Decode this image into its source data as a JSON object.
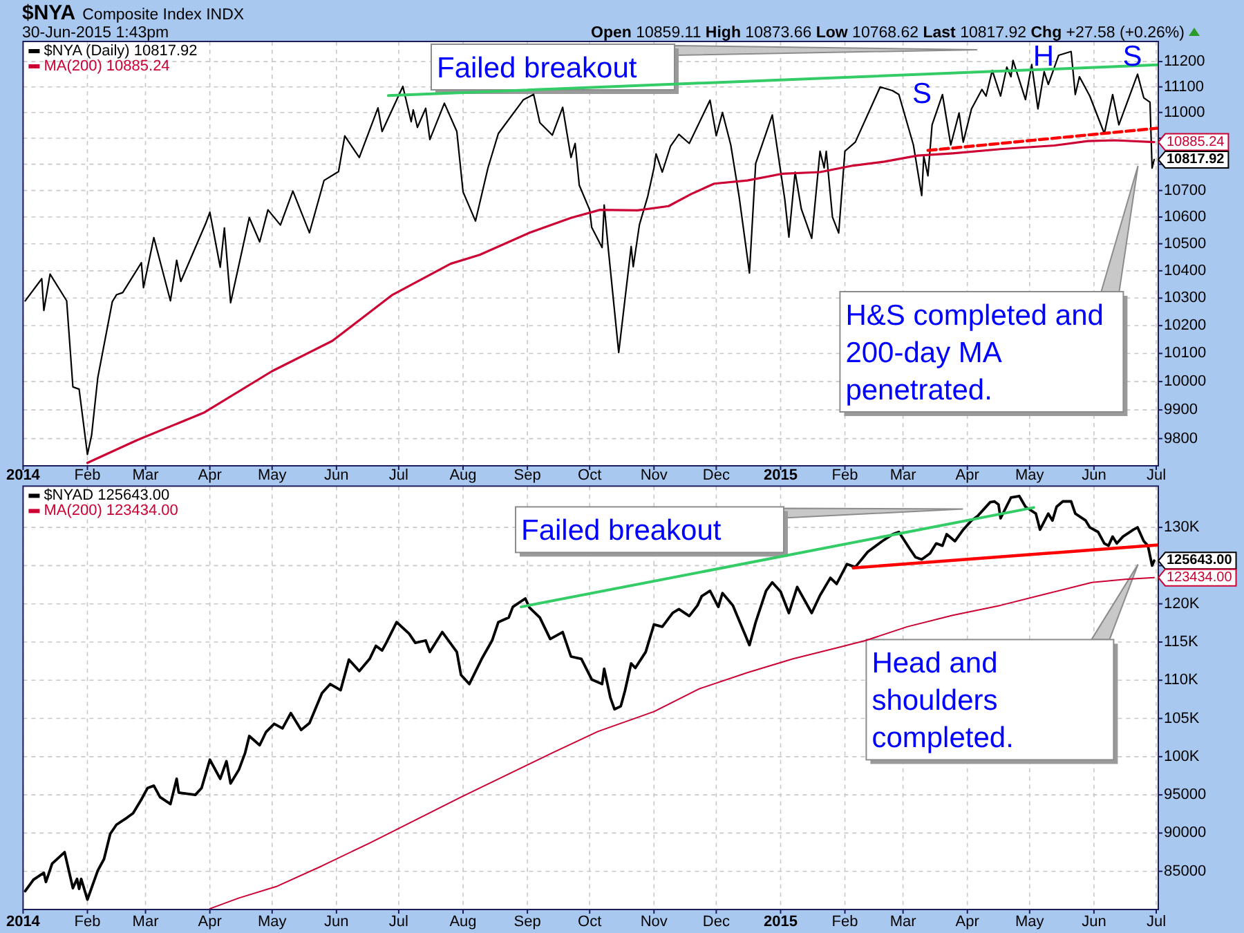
{
  "chart_data": [
    {
      "type": "line",
      "title": "$NYA",
      "subtitle": "Composite Index INDX",
      "xlim": [
        "2014-01-01",
        "2015-07-02"
      ],
      "xticks": [
        {
          "value": "2014-01-01",
          "label": "2014"
        },
        {
          "value": "2014-02-01",
          "label": "Feb"
        },
        {
          "value": "2014-03-01",
          "label": "Mar"
        },
        {
          "value": "2014-04-01",
          "label": "Apr"
        },
        {
          "value": "2014-05-01",
          "label": "May"
        },
        {
          "value": "2014-06-01",
          "label": "Jun"
        },
        {
          "value": "2014-07-01",
          "label": "Jul"
        },
        {
          "value": "2014-08-01",
          "label": "Aug"
        },
        {
          "value": "2014-09-01",
          "label": "Sep"
        },
        {
          "value": "2014-10-01",
          "label": "Oct"
        },
        {
          "value": "2014-11-01",
          "label": "Nov"
        },
        {
          "value": "2014-12-01",
          "label": "Dec"
        },
        {
          "value": "2015-01-01",
          "label": "2015"
        },
        {
          "value": "2015-02-01",
          "label": "Feb"
        },
        {
          "value": "2015-03-01",
          "label": "Mar"
        },
        {
          "value": "2015-04-01",
          "label": "Apr"
        },
        {
          "value": "2015-05-01",
          "label": "May"
        },
        {
          "value": "2015-06-01",
          "label": "Jun"
        },
        {
          "value": "2015-07-01",
          "label": "Jul"
        }
      ],
      "ylim": [
        9706,
        11280
      ],
      "yticks": [
        9800,
        9900,
        10000,
        10100,
        10200,
        10300,
        10400,
        10500,
        10600,
        10700,
        {
          "value": 10800,
          "label": null
        },
        {
          "value": 10900,
          "label": null
        },
        11000,
        11100,
        11200
      ],
      "log": true,
      "grid": true,
      "legend": "top left",
      "series": [
        {
          "name": "$NYA (Daily) 10817.92",
          "color": "#000000",
          "x": [
            "2014-01-02",
            "2014-01-10",
            "2014-01-11",
            "2014-01-14",
            "2014-01-22",
            "2014-01-25",
            "2014-01-28",
            "2014-02-01",
            "2014-02-03",
            "2014-02-06",
            "2014-02-13",
            "2014-02-15",
            "2014-02-18",
            "2014-02-27",
            "2014-02-28",
            "2014-03-05",
            "2014-03-13",
            "2014-03-16",
            "2014-03-18",
            "2014-03-30",
            "2014-04-01",
            "2014-04-06",
            "2014-04-08",
            "2014-04-11",
            "2014-04-20",
            "2014-04-25",
            "2014-04-29",
            "2014-05-05",
            "2014-05-11",
            "2014-05-19",
            "2014-05-26",
            "2014-06-02",
            "2014-06-05",
            "2014-06-12",
            "2014-06-21",
            "2014-06-23",
            "2014-07-03",
            "2014-07-07",
            "2014-07-08",
            "2014-07-10",
            "2014-07-14",
            "2014-07-16",
            "2014-07-23",
            "2014-07-29",
            "2014-08-01",
            "2014-08-07",
            "2014-08-13",
            "2014-08-18",
            "2014-08-30",
            "2014-09-04",
            "2014-09-07",
            "2014-09-13",
            "2014-09-18",
            "2014-09-22",
            "2014-09-24",
            "2014-09-26",
            "2014-10-01",
            "2014-10-02",
            "2014-10-07",
            "2014-10-08",
            "2014-10-10",
            "2014-10-15",
            "2014-10-21",
            "2014-10-22",
            "2014-10-25",
            "2014-10-29",
            "2014-11-01",
            "2014-11-02",
            "2014-11-05",
            "2014-11-09",
            "2014-11-13",
            "2014-11-18",
            "2014-11-28",
            "2014-12-01",
            "2014-12-04",
            "2014-12-08",
            "2014-12-12",
            "2014-12-17",
            "2014-12-20",
            "2014-12-28",
            "2015-01-03",
            "2015-01-05",
            "2015-01-08",
            "2015-01-11",
            "2015-01-16",
            "2015-01-20",
            "2015-01-22",
            "2015-01-23",
            "2015-01-26",
            "2015-01-29",
            "2015-02-01",
            "2015-02-06",
            "2015-02-18",
            "2015-02-24",
            "2015-02-27",
            "2015-03-06",
            "2015-03-10",
            "2015-03-11",
            "2015-03-13",
            "2015-03-15",
            "2015-03-20",
            "2015-03-24",
            "2015-03-28",
            "2015-03-30",
            "2015-04-03",
            "2015-04-08",
            "2015-04-10",
            "2015-04-13",
            "2015-04-17",
            "2015-04-20",
            "2015-04-22",
            "2015-04-23",
            "2015-04-29",
            "2015-05-02",
            "2015-05-05",
            "2015-05-08",
            "2015-05-10",
            "2015-05-15",
            "2015-05-21",
            "2015-05-23",
            "2015-05-25",
            "2015-05-30",
            "2015-06-06",
            "2015-06-10",
            "2015-06-13",
            "2015-06-22",
            "2015-06-25",
            "2015-06-28",
            "2015-06-29",
            "2015-06-30"
          ],
          "values": [
            10290,
            10371,
            10255,
            10388,
            10290,
            9981,
            9973,
            9745,
            9811,
            10014,
            10287,
            10312,
            10320,
            10430,
            10338,
            10523,
            10290,
            10439,
            10361,
            10576,
            10618,
            10413,
            10559,
            10283,
            10598,
            10507,
            10627,
            10570,
            10698,
            10541,
            10738,
            10772,
            10909,
            10826,
            11018,
            10926,
            11102,
            10964,
            11010,
            10942,
            11016,
            10895,
            11036,
            10926,
            10695,
            10585,
            10786,
            10918,
            11049,
            11071,
            10960,
            10912,
            11020,
            10826,
            10880,
            10720,
            10627,
            10561,
            10486,
            10645,
            10480,
            10103,
            10490,
            10415,
            10572,
            10678,
            10786,
            10840,
            10770,
            10870,
            10915,
            10880,
            11048,
            10910,
            11000,
            10874,
            10678,
            10392,
            10803,
            10990,
            10668,
            10525,
            10770,
            10630,
            10520,
            10850,
            10786,
            10850,
            10600,
            10540,
            10850,
            10885,
            11100,
            11085,
            11070,
            10874,
            10681,
            10830,
            10756,
            10952,
            11070,
            10874,
            10998,
            10885,
            11014,
            11090,
            11064,
            11165,
            11064,
            11178,
            11140,
            11205,
            11050,
            11188,
            11014,
            11160,
            11110,
            11225,
            11240,
            11070,
            11140,
            11064,
            10918,
            11070,
            10952,
            11150,
            11057,
            11040,
            10785,
            10817.92
          ]
        },
        {
          "name": "MA(200) 10885.24",
          "color": "#cc0033",
          "x": [
            "2014-02-01",
            "2014-02-25",
            "2014-03-29",
            "2014-05-01",
            "2014-05-30",
            "2014-06-28",
            "2014-07-26",
            "2014-08-09",
            "2014-09-02",
            "2014-09-22",
            "2014-10-06",
            "2014-10-24",
            "2014-11-08",
            "2014-11-19",
            "2014-11-30",
            "2014-12-16",
            "2015-01-02",
            "2015-01-20",
            "2015-02-05",
            "2015-02-20",
            "2015-03-08",
            "2015-03-25",
            "2015-04-17",
            "2015-05-13",
            "2015-05-29",
            "2015-06-11",
            "2015-06-30"
          ],
          "values": [
            9716,
            9795,
            9890,
            10037,
            10145,
            10312,
            10426,
            10459,
            10541,
            10597,
            10627,
            10625,
            10641,
            10687,
            10726,
            10738,
            10764,
            10770,
            10795,
            10810,
            10833,
            10842,
            10858,
            10872,
            10889,
            10892,
            10885.24
          ]
        },
        {
          "color": "#33cc66",
          "x": [
            "2014-06-26",
            "2015-07-02"
          ],
          "values": [
            11066,
            11187
          ]
        },
        {
          "color": "#ff0000",
          "line_style": "dashed",
          "x": [
            "2015-03-13",
            "2015-07-02"
          ],
          "values": [
            10853,
            10939
          ]
        }
      ],
      "annotations": [
        "30-Jun-2015 1:43pm",
        "Open 10859.11 High 10873.66 Low 10768.62 Last 10817.92 Chg +27.58 (+0.26%)",
        "Failed breakout",
        "S",
        "H",
        "S",
        "H&S completed and 200-day MA penetrated.",
        {
          "text": "10885.24",
          "x": "2015-06-30",
          "y": 10885.24
        },
        {
          "text": "10817.92",
          "x": "2015-06-30",
          "y": 10817.92
        }
      ]
    },
    {
      "type": "line",
      "xlim": [
        "2014-01-01",
        "2015-07-02"
      ],
      "xticks": [
        {
          "value": "2014-01-01",
          "label": "2014"
        },
        {
          "value": "2014-02-01",
          "label": "Feb"
        },
        {
          "value": "2014-03-01",
          "label": "Mar"
        },
        {
          "value": "2014-04-01",
          "label": "Apr"
        },
        {
          "value": "2014-05-01",
          "label": "May"
        },
        {
          "value": "2014-06-01",
          "label": "Jun"
        },
        {
          "value": "2014-07-01",
          "label": "Jul"
        },
        {
          "value": "2014-08-01",
          "label": "Aug"
        },
        {
          "value": "2014-09-01",
          "label": "Sep"
        },
        {
          "value": "2014-10-01",
          "label": "Oct"
        },
        {
          "value": "2014-11-01",
          "label": "Nov"
        },
        {
          "value": "2014-12-01",
          "label": "Dec"
        },
        {
          "value": "2015-01-01",
          "label": "2015"
        },
        {
          "value": "2015-02-01",
          "label": "Feb"
        },
        {
          "value": "2015-03-01",
          "label": "Mar"
        },
        {
          "value": "2015-04-01",
          "label": "Apr"
        },
        {
          "value": "2015-05-01",
          "label": "May"
        },
        {
          "value": "2015-06-01",
          "label": "Jun"
        },
        {
          "value": "2015-07-01",
          "label": "Jul"
        }
      ],
      "ylim": [
        80000,
        135400
      ],
      "yticks": [
        85000,
        90000,
        95000,
        {
          "value": 100000,
          "label": "100K"
        },
        {
          "value": 105000,
          "label": "105K"
        },
        {
          "value": 110000,
          "label": "110K"
        },
        {
          "value": 115000,
          "label": "115K"
        },
        {
          "value": 120000,
          "label": "120K"
        },
        {
          "value": 125000,
          "label": null
        },
        {
          "value": 130000,
          "label": "130K"
        }
      ],
      "grid": true,
      "legend": "top left",
      "series": [
        {
          "name": "$NYAD 125643.00",
          "color": "#000000",
          "x": [
            "2014-01-02",
            "2014-01-06",
            "2014-01-11",
            "2014-01-12",
            "2014-01-15",
            "2014-01-21",
            "2014-01-25",
            "2014-01-27",
            "2014-01-28",
            "2014-01-29",
            "2014-02-01",
            "2014-02-06",
            "2014-02-09",
            "2014-02-12",
            "2014-02-15",
            "2014-02-20",
            "2014-02-23",
            "2014-02-27",
            "2014-03-02",
            "2014-03-05",
            "2014-03-08",
            "2014-03-13",
            "2014-03-16",
            "2014-03-17",
            "2014-03-25",
            "2014-03-28",
            "2014-04-01",
            "2014-04-06",
            "2014-04-09",
            "2014-04-11",
            "2014-04-15",
            "2014-04-18",
            "2014-04-20",
            "2014-04-25",
            "2014-04-28",
            "2014-05-02",
            "2014-05-06",
            "2014-05-10",
            "2014-05-15",
            "2014-05-19",
            "2014-05-25",
            "2014-05-29",
            "2014-06-03",
            "2014-06-07",
            "2014-06-12",
            "2014-06-17",
            "2014-06-20",
            "2014-06-23",
            "2014-06-25",
            "2014-06-30",
            "2014-07-06",
            "2014-07-09",
            "2014-07-14",
            "2014-07-16",
            "2014-07-22",
            "2014-07-29",
            "2014-07-31",
            "2014-08-04",
            "2014-08-10",
            "2014-08-15",
            "2014-08-18",
            "2014-08-23",
            "2014-08-25",
            "2014-08-31",
            "2014-09-02",
            "2014-09-07",
            "2014-09-12",
            "2014-09-18",
            "2014-09-22",
            "2014-09-27",
            "2014-10-02",
            "2014-10-07",
            "2014-10-08",
            "2014-10-11",
            "2014-10-13",
            "2014-10-16",
            "2014-10-18",
            "2014-10-21",
            "2014-10-23",
            "2014-10-28",
            "2014-11-01",
            "2014-11-05",
            "2014-11-10",
            "2014-11-13",
            "2014-11-18",
            "2014-11-22",
            "2014-11-24",
            "2014-11-28",
            "2014-12-02",
            "2014-12-04",
            "2014-12-09",
            "2014-12-17",
            "2014-12-20",
            "2014-12-25",
            "2014-12-28",
            "2015-01-01",
            "2015-01-05",
            "2015-01-09",
            "2015-01-16",
            "2015-01-20",
            "2015-01-25",
            "2015-01-28",
            "2015-02-02",
            "2015-02-06",
            "2015-02-12",
            "2015-02-19",
            "2015-02-24",
            "2015-02-27",
            "2015-03-04",
            "2015-03-07",
            "2015-03-10",
            "2015-03-14",
            "2015-03-17",
            "2015-03-20",
            "2015-03-22",
            "2015-03-26",
            "2015-03-30",
            "2015-04-03",
            "2015-04-06",
            "2015-04-12",
            "2015-04-14",
            "2015-04-16",
            "2015-04-17",
            "2015-04-22",
            "2015-04-26",
            "2015-04-29",
            "2015-05-04",
            "2015-05-06",
            "2015-05-10",
            "2015-05-12",
            "2015-05-14",
            "2015-05-17",
            "2015-05-21",
            "2015-05-23",
            "2015-05-28",
            "2015-05-30",
            "2015-06-03",
            "2015-06-06",
            "2015-06-08",
            "2015-06-10",
            "2015-06-12",
            "2015-06-15",
            "2015-06-20",
            "2015-06-22",
            "2015-06-25",
            "2015-06-27",
            "2015-06-29",
            "2015-06-30"
          ],
          "values": [
            82400,
            83900,
            84800,
            83600,
            86000,
            87500,
            82800,
            84000,
            82700,
            84000,
            81300,
            85100,
            86600,
            89900,
            91100,
            92000,
            92600,
            94400,
            95900,
            96200,
            94700,
            93800,
            97100,
            95300,
            95000,
            95900,
            99600,
            97100,
            99400,
            96500,
            98300,
            100500,
            102700,
            101500,
            103200,
            104300,
            103700,
            105700,
            103500,
            104400,
            108300,
            109500,
            108700,
            112700,
            111200,
            112800,
            114500,
            113900,
            114900,
            117600,
            116100,
            114900,
            115200,
            113700,
            116300,
            113700,
            110700,
            109500,
            112800,
            115200,
            117600,
            118200,
            119600,
            120700,
            119500,
            118200,
            115400,
            116300,
            113100,
            112800,
            110100,
            109500,
            111500,
            107700,
            106200,
            106600,
            108600,
            112200,
            111600,
            113700,
            117300,
            117000,
            118800,
            119300,
            118400,
            119800,
            121000,
            121700,
            119600,
            121400,
            119800,
            114600,
            117600,
            121700,
            122800,
            121600,
            118800,
            122200,
            118800,
            121100,
            123400,
            122600,
            125200,
            124800,
            126800,
            128200,
            129100,
            129400,
            127300,
            126100,
            125800,
            126600,
            127900,
            127600,
            129100,
            128200,
            129700,
            130900,
            131500,
            133300,
            133400,
            133000,
            131200,
            133900,
            134100,
            132700,
            131800,
            129700,
            131800,
            130900,
            132700,
            133400,
            133400,
            131800,
            130900,
            130000,
            129400,
            127900,
            127600,
            128800,
            127900,
            128800,
            129700,
            130000,
            128200,
            127600,
            125000,
            125643
          ]
        },
        {
          "name": "MA(200) 123434.00",
          "color": "#cc0033",
          "x": [
            "2014-04-01",
            "2014-04-15",
            "2014-05-03",
            "2014-05-25",
            "2014-06-17",
            "2014-07-09",
            "2014-07-31",
            "2014-08-22",
            "2014-09-13",
            "2014-10-05",
            "2014-11-01",
            "2014-11-23",
            "2014-12-16",
            "2015-01-07",
            "2015-01-29",
            "2015-02-11",
            "2015-03-03",
            "2015-03-25",
            "2015-04-17",
            "2015-05-09",
            "2015-05-31",
            "2015-06-16",
            "2015-06-30"
          ],
          "values": [
            80100,
            81500,
            83000,
            85700,
            88700,
            91700,
            94700,
            97600,
            100500,
            103300,
            105900,
            108900,
            111000,
            112800,
            114300,
            115200,
            117000,
            118500,
            119800,
            121300,
            122800,
            123200,
            123434
          ]
        },
        {
          "color": "#33cc66",
          "x": [
            "2014-08-29",
            "2015-05-03"
          ],
          "values": [
            119600,
            132600
          ]
        },
        {
          "color": "#ff0000",
          "x": [
            "2015-02-05",
            "2015-07-02"
          ],
          "values": [
            124700,
            127700
          ]
        }
      ],
      "annotations": [
        "Failed breakout",
        "Head and shoulders completed.",
        {
          "text": "125643.00",
          "x": "2015-06-30",
          "y": 125643
        },
        {
          "text": "123434.00",
          "x": "2015-06-30",
          "y": 123434
        }
      ]
    }
  ]
}
